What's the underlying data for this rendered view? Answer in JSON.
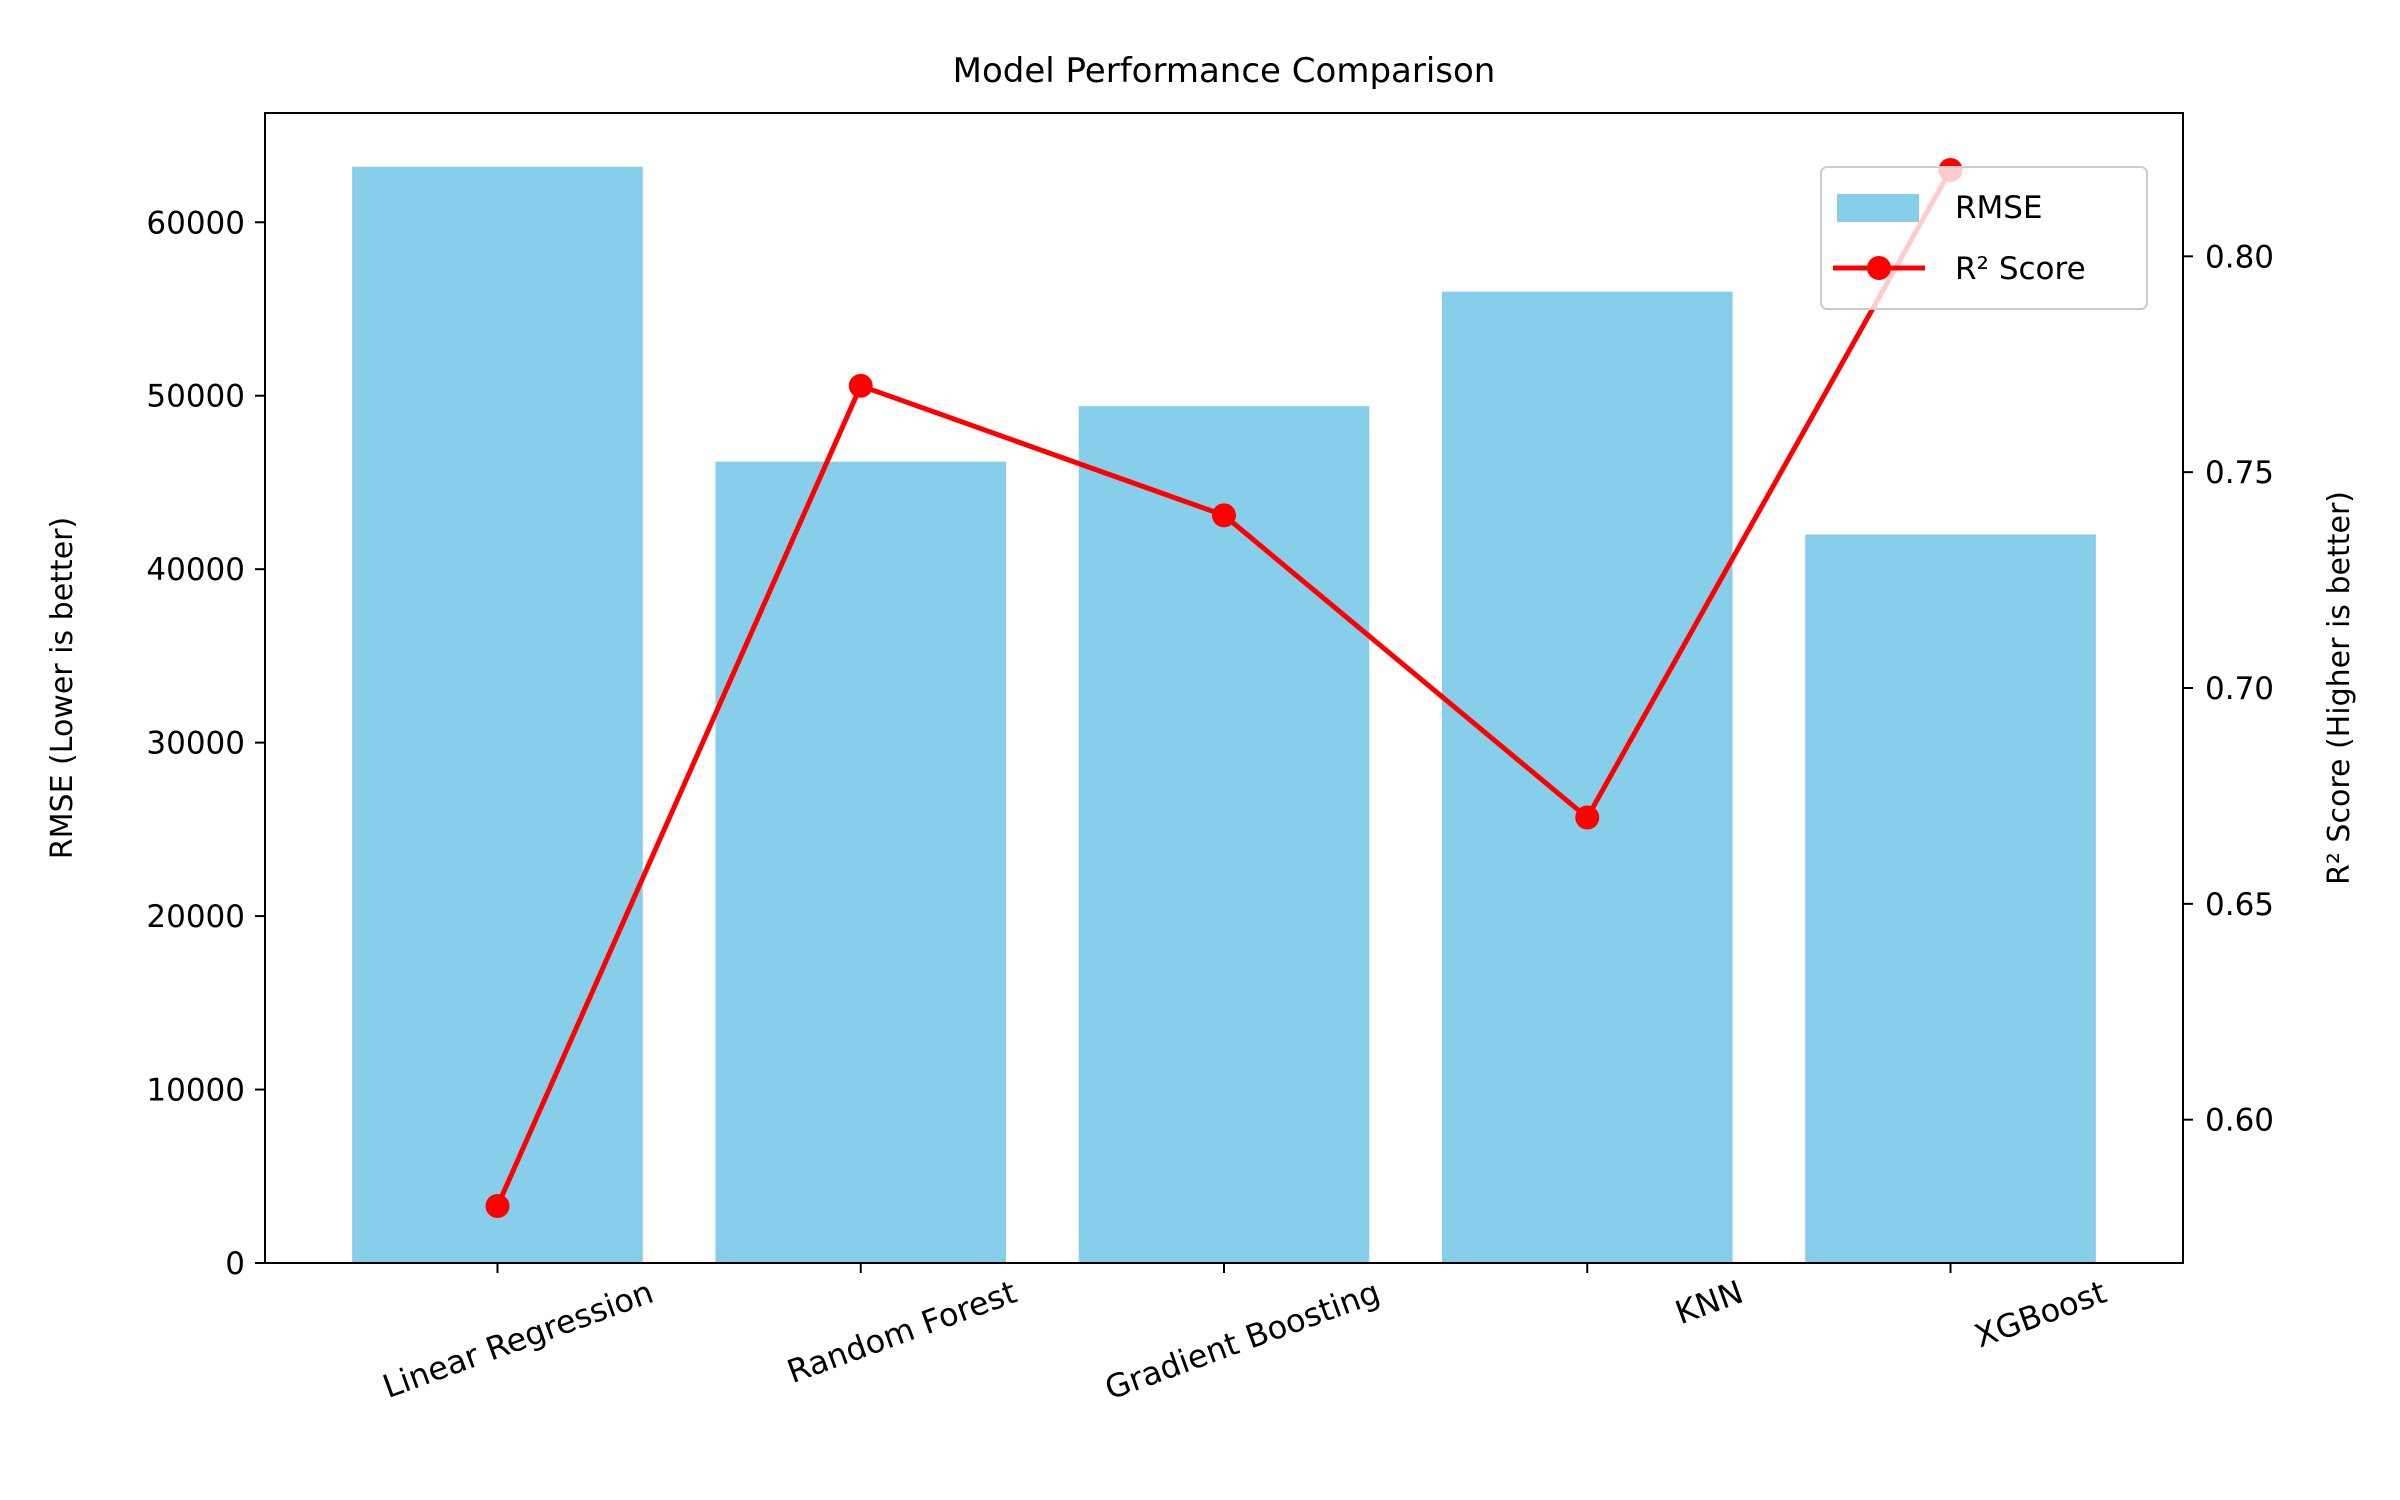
{
  "chart_data": {
    "type": "bar",
    "title": "Model Performance Comparison",
    "categories": [
      "Linear Regression",
      "Random Forest",
      "Gradient Boosting",
      "KNN",
      "XGBoost"
    ],
    "y_left": {
      "label": "RMSE (Lower is better)",
      "range": [
        0,
        66300
      ],
      "ticks": [
        0,
        10000,
        20000,
        30000,
        40000,
        50000,
        60000
      ]
    },
    "y_right": {
      "label": "R² Score (Higher is better)",
      "range": [
        0.5668,
        0.8332
      ],
      "ticks": [
        "0.60",
        "0.65",
        "0.70",
        "0.75",
        "0.80"
      ]
    },
    "series": [
      {
        "name": "RMSE",
        "type": "bar",
        "axis": "left",
        "color": "#87CEEB",
        "values": [
          63200,
          46200,
          49400,
          56000,
          42000
        ]
      },
      {
        "name": "R² Score",
        "type": "line",
        "axis": "right",
        "color": "#FF0000",
        "marker": "circle",
        "values": [
          0.58,
          0.77,
          0.74,
          0.67,
          0.82
        ]
      }
    ],
    "legend": {
      "position": "top-right",
      "entries": [
        "RMSE",
        "R² Score"
      ]
    },
    "grid": false
  }
}
